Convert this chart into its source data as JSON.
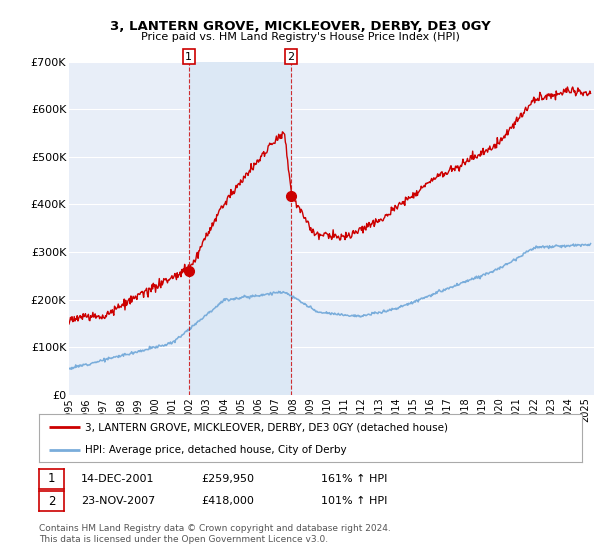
{
  "title": "3, LANTERN GROVE, MICKLEOVER, DERBY, DE3 0GY",
  "subtitle": "Price paid vs. HM Land Registry's House Price Index (HPI)",
  "ylim": [
    0,
    700000
  ],
  "yticks": [
    0,
    100000,
    200000,
    300000,
    400000,
    500000,
    600000,
    700000
  ],
  "ytick_labels": [
    "£0",
    "£100K",
    "£200K",
    "£300K",
    "£400K",
    "£500K",
    "£600K",
    "£700K"
  ],
  "background_color": "#ffffff",
  "plot_bg_color": "#e8eef8",
  "shade_color": "#dce8f5",
  "grid_color": "#ffffff",
  "red_color": "#cc0000",
  "blue_color": "#7aaddb",
  "marker1_x": 2001.96,
  "marker1_y": 259950,
  "marker2_x": 2007.9,
  "marker2_y": 418000,
  "label1_date": "14-DEC-2001",
  "label1_price": "£259,950",
  "label1_hpi": "161% ↑ HPI",
  "label2_date": "23-NOV-2007",
  "label2_price": "£418,000",
  "label2_hpi": "101% ↑ HPI",
  "legend_line1": "3, LANTERN GROVE, MICKLEOVER, DERBY, DE3 0GY (detached house)",
  "legend_line2": "HPI: Average price, detached house, City of Derby",
  "footnote": "Contains HM Land Registry data © Crown copyright and database right 2024.\nThis data is licensed under the Open Government Licence v3.0.",
  "xmin": 1995,
  "xmax": 2025.5
}
